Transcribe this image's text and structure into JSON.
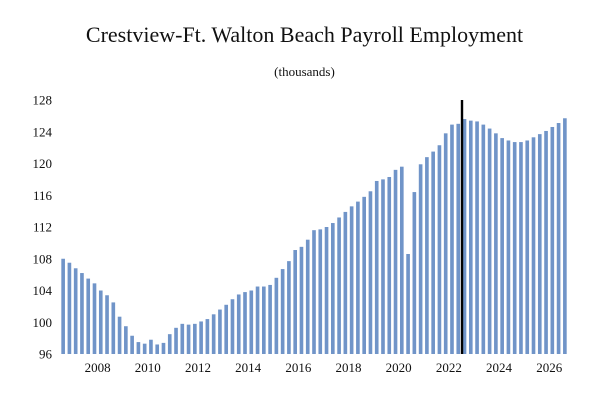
{
  "chart_data": {
    "type": "bar",
    "title": "Crestview-Ft. Walton Beach Payroll Employment",
    "subtitle": "(thousands)",
    "xlabel": "",
    "ylabel": "",
    "ylim": [
      96,
      128
    ],
    "yticks": [
      96,
      100,
      104,
      108,
      112,
      116,
      120,
      124,
      128
    ],
    "xticks": [
      "2008",
      "2010",
      "2012",
      "2014",
      "2016",
      "2018",
      "2020",
      "2022",
      "2024",
      "2026"
    ],
    "xlim": [
      "2006Q3",
      "2026Q4"
    ],
    "grid": false,
    "bar_color": "#7094c8",
    "marker_color": "#000000",
    "forecast_marker": "2022Q3",
    "categories": [
      "2006Q3",
      "2006Q4",
      "2007Q1",
      "2007Q2",
      "2007Q3",
      "2007Q4",
      "2008Q1",
      "2008Q2",
      "2008Q3",
      "2008Q4",
      "2009Q1",
      "2009Q2",
      "2009Q3",
      "2009Q4",
      "2010Q1",
      "2010Q2",
      "2010Q3",
      "2010Q4",
      "2011Q1",
      "2011Q2",
      "2011Q3",
      "2011Q4",
      "2012Q1",
      "2012Q2",
      "2012Q3",
      "2012Q4",
      "2013Q1",
      "2013Q2",
      "2013Q3",
      "2013Q4",
      "2014Q1",
      "2014Q2",
      "2014Q3",
      "2014Q4",
      "2015Q1",
      "2015Q2",
      "2015Q3",
      "2015Q4",
      "2016Q1",
      "2016Q2",
      "2016Q3",
      "2016Q4",
      "2017Q1",
      "2017Q2",
      "2017Q3",
      "2017Q4",
      "2018Q1",
      "2018Q2",
      "2018Q3",
      "2018Q4",
      "2019Q1",
      "2019Q2",
      "2019Q3",
      "2019Q4",
      "2020Q1",
      "2020Q2",
      "2020Q3",
      "2020Q4",
      "2021Q1",
      "2021Q2",
      "2021Q3",
      "2021Q4",
      "2022Q1",
      "2022Q2",
      "2022Q3",
      "2022Q4",
      "2023Q1",
      "2023Q2",
      "2023Q3",
      "2023Q4",
      "2024Q1",
      "2024Q2",
      "2024Q3",
      "2024Q4",
      "2025Q1",
      "2025Q2",
      "2025Q3",
      "2025Q4",
      "2026Q1",
      "2026Q2",
      "2026Q3"
    ],
    "values": [
      108.0,
      107.5,
      106.8,
      106.2,
      105.5,
      104.9,
      104.0,
      103.4,
      102.5,
      100.7,
      99.5,
      98.3,
      97.5,
      97.3,
      97.8,
      97.2,
      97.4,
      98.5,
      99.3,
      99.8,
      99.7,
      99.8,
      100.1,
      100.4,
      101.0,
      101.6,
      102.2,
      102.9,
      103.5,
      103.8,
      104.0,
      104.5,
      104.5,
      104.7,
      105.6,
      106.7,
      107.7,
      109.1,
      109.5,
      110.4,
      111.6,
      111.7,
      112.0,
      112.5,
      113.2,
      113.9,
      114.6,
      115.2,
      115.8,
      116.5,
      117.8,
      118.0,
      118.3,
      119.2,
      119.6,
      108.6,
      116.4,
      119.9,
      120.8,
      121.5,
      122.3,
      123.8,
      124.9,
      125.0,
      125.6,
      125.4,
      125.3,
      124.9,
      124.4,
      123.8,
      123.2,
      122.9,
      122.7,
      122.7,
      122.9,
      123.3,
      123.7,
      124.1,
      124.6,
      125.1,
      125.7
    ]
  }
}
